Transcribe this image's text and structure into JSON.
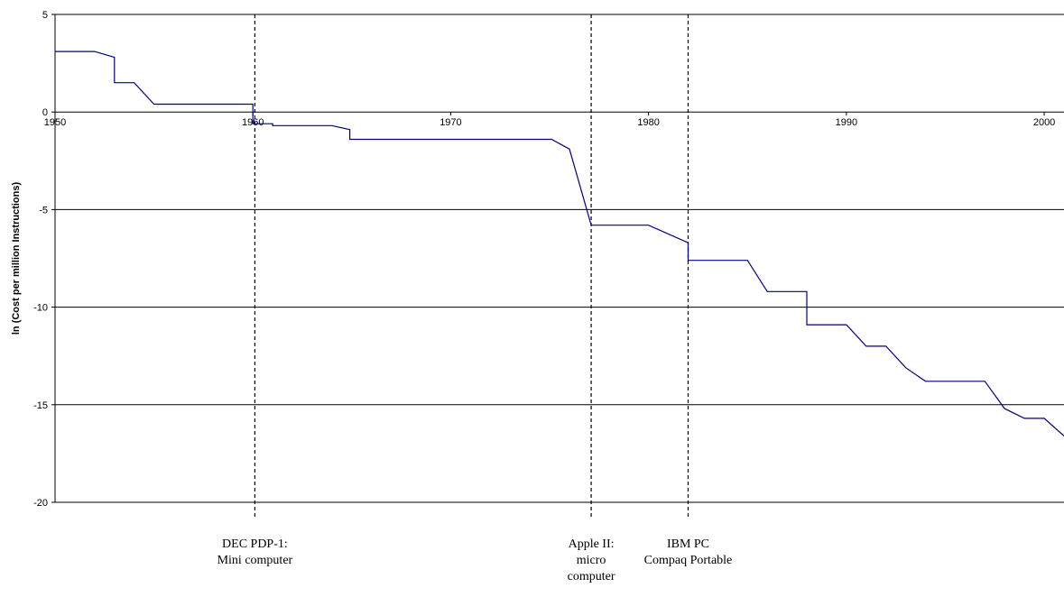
{
  "chart_data": {
    "type": "line",
    "title": "",
    "xlabel": "",
    "ylabel": "ln (Cost per million Instructions)",
    "xlim": [
      1950,
      2001
    ],
    "ylim": [
      -20,
      5
    ],
    "x_ticks": [
      1950,
      1960,
      1970,
      1980,
      1990,
      2000
    ],
    "y_ticks": [
      5,
      0,
      -5,
      -10,
      -15,
      -20
    ],
    "grid": "horizontal",
    "legend": "none",
    "series": [
      {
        "color": "#000080",
        "points": [
          [
            1950,
            3.1
          ],
          [
            1952,
            3.1
          ],
          [
            1953,
            2.8
          ],
          [
            1953,
            1.5
          ],
          [
            1954,
            1.5
          ],
          [
            1955,
            0.4
          ],
          [
            1960,
            0.4
          ],
          [
            1960,
            -0.6
          ],
          [
            1961,
            -0.6
          ],
          [
            1961,
            -0.7
          ],
          [
            1964,
            -0.7
          ],
          [
            1964.9,
            -0.9
          ],
          [
            1964.9,
            -1.4
          ],
          [
            1975.1,
            -1.4
          ],
          [
            1976,
            -1.9
          ],
          [
            1977.1,
            -5.8
          ],
          [
            1980,
            -5.8
          ],
          [
            1982,
            -6.7
          ],
          [
            1982,
            -7.6
          ],
          [
            1985,
            -7.6
          ],
          [
            1986,
            -9.2
          ],
          [
            1988,
            -9.2
          ],
          [
            1988,
            -10.9
          ],
          [
            1990,
            -10.9
          ],
          [
            1991,
            -12.0
          ],
          [
            1992,
            -12.0
          ],
          [
            1993,
            -13.1
          ],
          [
            1994,
            -13.8
          ],
          [
            1997,
            -13.8
          ],
          [
            1998,
            -15.2
          ],
          [
            1999,
            -15.7
          ],
          [
            2000,
            -15.7
          ],
          [
            2001,
            -16.6
          ]
        ]
      }
    ],
    "annotations": [
      {
        "x": 1960.1,
        "lines": [
          "DEC PDP-1:",
          "Mini computer"
        ]
      },
      {
        "x": 1977.1,
        "lines": [
          "Apple II:",
          "micro",
          "computer"
        ]
      },
      {
        "x": 1982,
        "lines": [
          "IBM PC",
          "Compaq Portable"
        ]
      }
    ]
  }
}
